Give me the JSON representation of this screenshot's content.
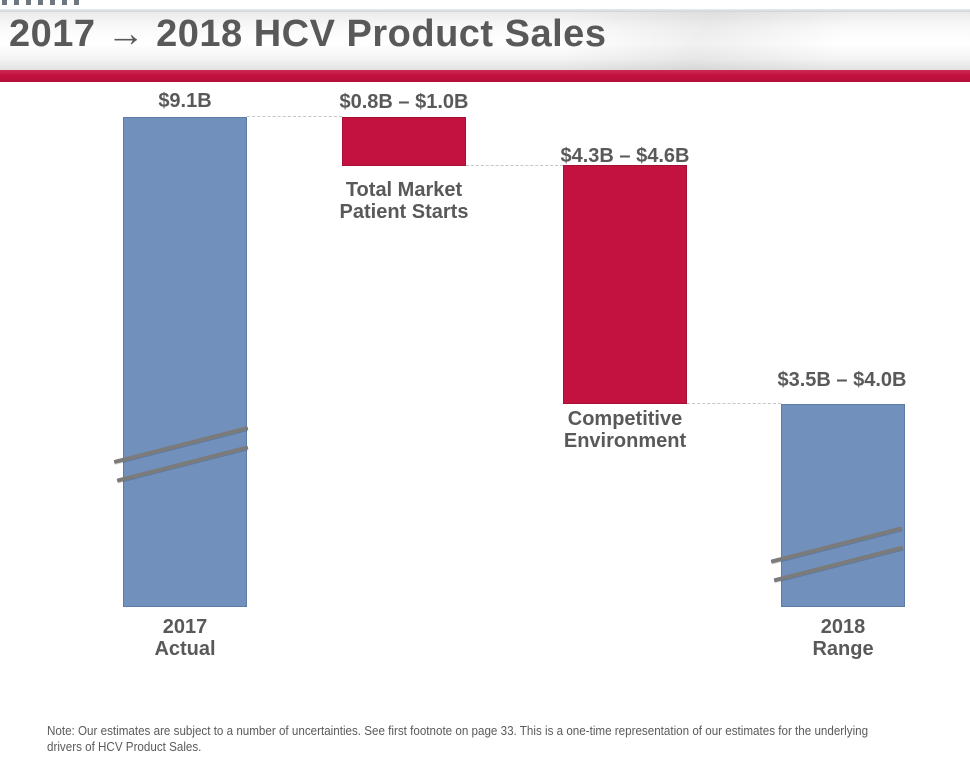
{
  "header": {
    "title": "2017 → 2018 HCV Product Sales",
    "title_color": "#595959",
    "accent_bar_color": "#C3123F"
  },
  "chart_data": {
    "type": "bar",
    "subtype": "waterfall",
    "title": "2017 → 2018 HCV Product Sales",
    "unit": "USD billions",
    "ylim": [
      0,
      9.1
    ],
    "grid": false,
    "legend": false,
    "connector_style": "dashed",
    "bar_colors": {
      "actual_range": "#7191BC",
      "decrease": "#C3123F"
    },
    "bars": [
      {
        "category": "2017 Actual",
        "category_lines": [
          "2017",
          "Actual"
        ],
        "label": "$9.1B",
        "value": 9.1,
        "span": [
          0,
          9.1
        ],
        "role": "total",
        "color": "#7191BC",
        "axis_break_marks": true
      },
      {
        "category": "Total Market Patient Starts",
        "category_lines": [
          "Total Market",
          "Patient Starts"
        ],
        "label": "$0.8B – $1.0B",
        "value_range": [
          0.8,
          1.0
        ],
        "span": [
          8.2,
          9.1
        ],
        "role": "decrease",
        "color": "#C3123F",
        "axis_break_marks": false
      },
      {
        "category": "Competitive Environment",
        "category_lines": [
          "Competitive",
          "Environment"
        ],
        "label": "$4.3B – $4.6B",
        "value_range": [
          4.3,
          4.6
        ],
        "span": [
          3.75,
          8.2
        ],
        "role": "decrease",
        "color": "#C3123F",
        "axis_break_marks": false
      },
      {
        "category": "2018 Range",
        "category_lines": [
          "2018",
          "Range"
        ],
        "label": "$3.5B – $4.0B",
        "value_range": [
          3.5,
          4.0
        ],
        "span": [
          0,
          3.75
        ],
        "role": "total",
        "color": "#7191BC",
        "axis_break_marks": true
      }
    ]
  },
  "footnote": {
    "line1": "Note: Our estimates are subject to a number of uncertainties. See first footnote on page 33. This is a one-time representation of our estimates for the underlying",
    "line2": "drivers of HCV Product Sales."
  }
}
